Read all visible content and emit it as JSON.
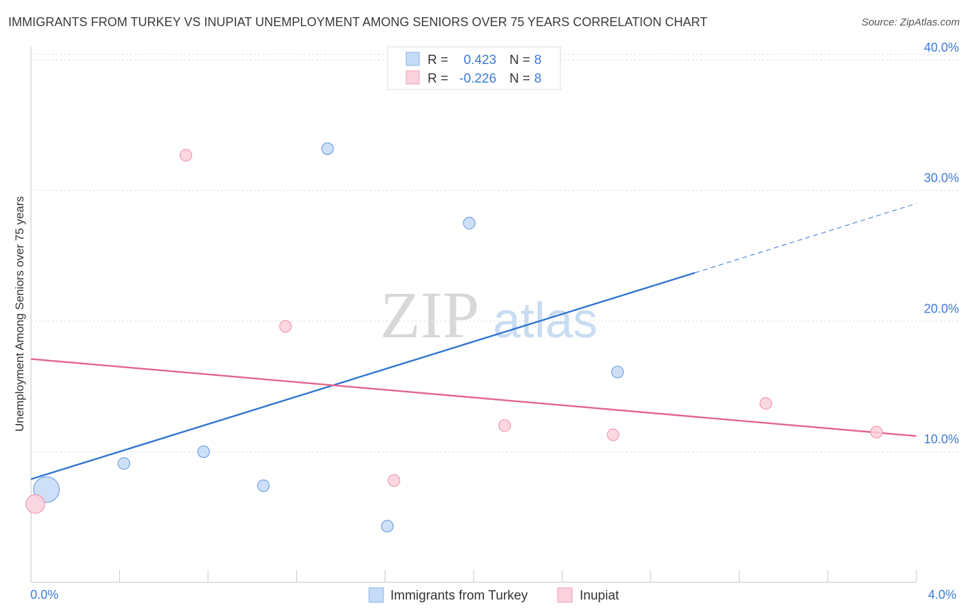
{
  "header": {
    "title": "IMMIGRANTS FROM TURKEY VS INUPIAT UNEMPLOYMENT AMONG SENIORS OVER 75 YEARS CORRELATION CHART",
    "source": "Source: ZipAtlas.com"
  },
  "watermark": {
    "zip": "ZIP",
    "atlas": "atlas"
  },
  "legend": {
    "r_label": "R =",
    "n_label": "N =",
    "rows": [
      {
        "r": "0.423",
        "n": "8",
        "color": "#aac8f0"
      },
      {
        "r": "-0.226",
        "n": "8",
        "color": "#f7b8c8"
      }
    ]
  },
  "chart_data": {
    "type": "scatter",
    "title": "IMMIGRANTS FROM TURKEY VS INUPIAT UNEMPLOYMENT AMONG SENIORS OVER 75 YEARS CORRELATION CHART",
    "xlabel": "",
    "ylabel": "Unemployment Among Seniors over 75 years",
    "xlim": [
      0,
      4
    ],
    "ylim": [
      0,
      41
    ],
    "x_tick_labels": [
      "0.0%",
      "4.0%"
    ],
    "y_ticks": [
      10,
      20,
      30,
      40
    ],
    "y_tick_labels": [
      "10.0%",
      "20.0%",
      "30.0%",
      "40.0%"
    ],
    "grid": true,
    "series": [
      {
        "name": "Immigrants from Turkey",
        "color": "#5b93e0",
        "fill": "#c5dbf6",
        "points": [
          {
            "x": 0.07,
            "y": 7.1,
            "size": 2.2
          },
          {
            "x": 0.42,
            "y": 9.1,
            "size": 1
          },
          {
            "x": 0.78,
            "y": 10.0,
            "size": 1
          },
          {
            "x": 1.05,
            "y": 7.4,
            "size": 1
          },
          {
            "x": 1.34,
            "y": 33.2,
            "size": 1
          },
          {
            "x": 1.61,
            "y": 4.3,
            "size": 1
          },
          {
            "x": 1.98,
            "y": 27.5,
            "size": 1
          },
          {
            "x": 2.65,
            "y": 16.1,
            "size": 1
          }
        ],
        "trend": {
          "x0": 0,
          "y0": 7.9,
          "x1": 3.0,
          "y1": 23.7,
          "dash_x1": 4.0,
          "dash_y1": 29.0,
          "color": "#2f74d0"
        }
      },
      {
        "name": "Inupiat",
        "color": "#ef8aa6",
        "fill": "#fad1dc",
        "points": [
          {
            "x": 0.02,
            "y": 6.0,
            "size": 1.6
          },
          {
            "x": 0.7,
            "y": 32.7,
            "size": 1
          },
          {
            "x": 1.15,
            "y": 19.6,
            "size": 1
          },
          {
            "x": 1.64,
            "y": 7.8,
            "size": 1
          },
          {
            "x": 2.14,
            "y": 12.0,
            "size": 1
          },
          {
            "x": 2.63,
            "y": 11.3,
            "size": 1
          },
          {
            "x": 3.32,
            "y": 13.7,
            "size": 1
          },
          {
            "x": 3.82,
            "y": 11.5,
            "size": 1
          }
        ],
        "trend": {
          "x0": 0,
          "y0": 17.1,
          "x1": 4.0,
          "y1": 11.2,
          "color": "#e5648c"
        }
      }
    ]
  },
  "bottom_legend": [
    {
      "label": "Immigrants from Turkey",
      "color": "#c5dbf6",
      "border": "#8ab2e6"
    },
    {
      "label": "Inupiat",
      "color": "#fad1dc",
      "border": "#f0a0b8"
    }
  ]
}
